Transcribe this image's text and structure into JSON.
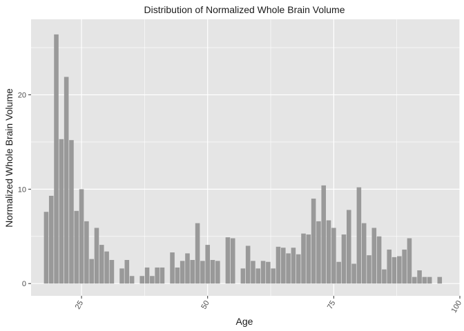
{
  "chart_data": {
    "type": "bar",
    "title": "Distribution of Normalized Whole Brain Volume",
    "xlabel": "Age",
    "ylabel": "Normalized Whole Brain Volume",
    "xlim": [
      15,
      100
    ],
    "ylim": [
      -1.3,
      28
    ],
    "x_ticks": [
      25,
      50,
      75,
      100
    ],
    "x_tick_labels": [
      "25",
      "50",
      "75",
      "100"
    ],
    "y_ticks": [
      0,
      10,
      20
    ],
    "y_tick_labels": [
      "0",
      "10",
      "20"
    ],
    "grid": true,
    "legend": "none",
    "bar_color": "#999999",
    "panel_color": "#e5e5e5",
    "grid_color": "#ffffff",
    "x": [
      18,
      19,
      20,
      21,
      22,
      23,
      24,
      25,
      26,
      27,
      28,
      29,
      30,
      31,
      33,
      34,
      35,
      37,
      38,
      39,
      40,
      41,
      43,
      44,
      45,
      46,
      47,
      48,
      49,
      50,
      51,
      52,
      54,
      55,
      57,
      58,
      59,
      60,
      61,
      62,
      63,
      64,
      65,
      66,
      67,
      68,
      69,
      70,
      71,
      72,
      73,
      74,
      75,
      76,
      77,
      78,
      79,
      80,
      81,
      82,
      83,
      84,
      85,
      86,
      87,
      88,
      89,
      90,
      91,
      92,
      93,
      94,
      96
    ],
    "values": [
      7.6,
      9.3,
      26.4,
      15.3,
      21.9,
      15.2,
      7.7,
      10.0,
      6.6,
      2.6,
      5.9,
      4.1,
      3.4,
      2.5,
      1.6,
      2.5,
      0.8,
      0.8,
      1.7,
      0.8,
      1.7,
      1.7,
      3.3,
      1.7,
      2.4,
      3.2,
      2.5,
      6.4,
      2.4,
      4.1,
      2.5,
      2.4,
      4.9,
      4.8,
      1.6,
      4.0,
      2.4,
      1.6,
      2.4,
      2.3,
      1.6,
      3.9,
      3.8,
      3.2,
      3.8,
      3.1,
      5.3,
      5.2,
      9.0,
      6.6,
      10.4,
      6.7,
      5.9,
      2.3,
      5.2,
      7.8,
      2.1,
      10.2,
      6.4,
      3.0,
      5.9,
      5.0,
      1.5,
      3.6,
      2.8,
      2.9,
      3.6,
      4.8,
      0.7,
      1.4,
      0.7,
      0.7,
      0.7
    ]
  }
}
